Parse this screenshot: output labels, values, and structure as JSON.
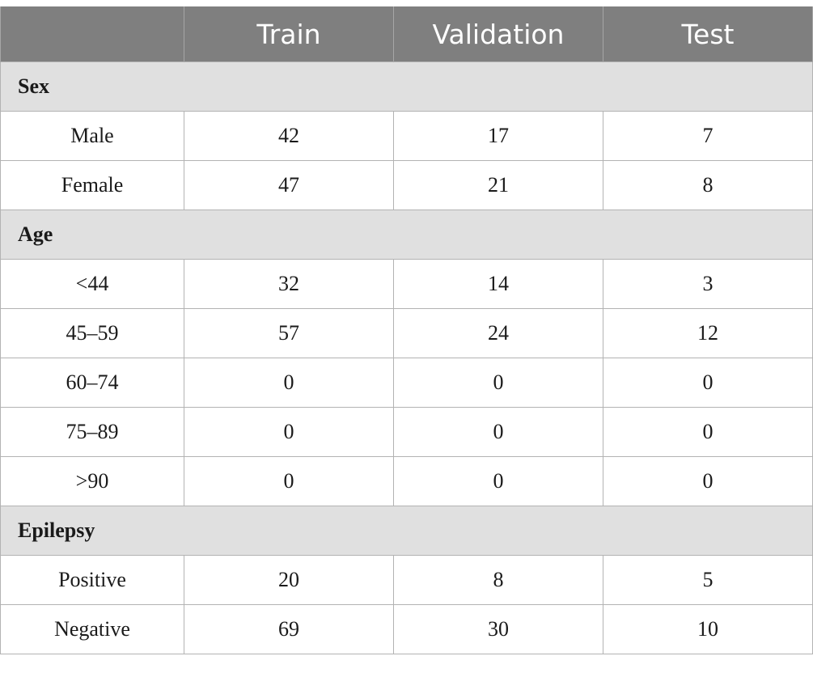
{
  "table": {
    "columns": [
      "",
      "Train",
      "Validation",
      "Test"
    ],
    "sections": [
      {
        "title": "Sex",
        "rows": [
          {
            "label": "Male",
            "train": "42",
            "validation": "17",
            "test": "7"
          },
          {
            "label": "Female",
            "train": "47",
            "validation": "21",
            "test": "8"
          }
        ]
      },
      {
        "title": "Age",
        "rows": [
          {
            "label": "<44",
            "train": "32",
            "validation": "14",
            "test": "3"
          },
          {
            "label": "45–59",
            "train": "57",
            "validation": "24",
            "test": "12"
          },
          {
            "label": "60–74",
            "train": "0",
            "validation": "0",
            "test": "0"
          },
          {
            "label": "75–89",
            "train": "0",
            "validation": "0",
            "test": "0"
          },
          {
            "label": ">90",
            "train": "0",
            "validation": "0",
            "test": "0"
          }
        ]
      },
      {
        "title": "Epilepsy",
        "rows": [
          {
            "label": "Positive",
            "train": "20",
            "validation": "8",
            "test": "5"
          },
          {
            "label": "Negative",
            "train": "69",
            "validation": "30",
            "test": "10"
          }
        ]
      }
    ]
  }
}
